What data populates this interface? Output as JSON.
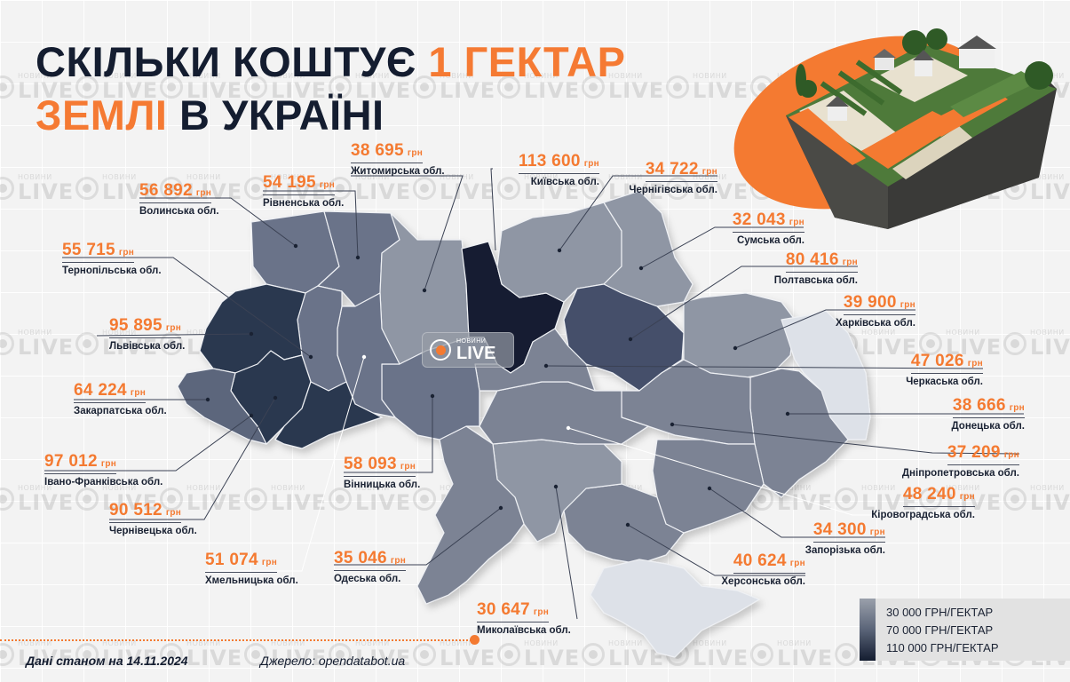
{
  "title": {
    "line1_dark": "СКІЛЬКИ КОШТУЄ ",
    "line1_accent": "1 ГЕКТАР",
    "line2_accent": "ЗЕМЛІ",
    "line2_dark": " В УКРАЇНІ"
  },
  "colors": {
    "accent": "#f47a31",
    "dark": "#141d30",
    "background": "#f3f3f3",
    "scale_low": "#9aa0ab",
    "scale_mid": "#5a6478",
    "scale_high": "#141d30",
    "occupied": "#dde1e8"
  },
  "watermark": {
    "small": "НОВИНИ",
    "big": "LIVE"
  },
  "center_logo": {
    "small": "НОВИНИ",
    "big": "LIVE"
  },
  "currency": "грн",
  "regions": [
    {
      "value": "56 892",
      "name": "Волинська обл."
    },
    {
      "value": "54 195",
      "name": "Рівненська обл."
    },
    {
      "value": "38 695",
      "name": "Житомирська обл."
    },
    {
      "value": "113 600",
      "name": "Київська обл."
    },
    {
      "value": "34 722",
      "name": "Чернігівська обл."
    },
    {
      "value": "32 043",
      "name": "Сумська обл."
    },
    {
      "value": "80 416",
      "name": "Полтавська обл."
    },
    {
      "value": "39 900",
      "name": "Харківська обл."
    },
    {
      "value": "47 026",
      "name": "Черкаська обл."
    },
    {
      "value": "38 666",
      "name": "Донецька обл."
    },
    {
      "value": "37 209",
      "name": "Дніпропетровська обл."
    },
    {
      "value": "48 240",
      "name": "Кіровоградська обл."
    },
    {
      "value": "34 300",
      "name": "Запорізька обл."
    },
    {
      "value": "40 624",
      "name": "Херсонська обл."
    },
    {
      "value": "30 647",
      "name": "Миколаївська обл."
    },
    {
      "value": "35 046",
      "name": "Одеська обл."
    },
    {
      "value": "58 093",
      "name": "Вінницька обл."
    },
    {
      "value": "51 074",
      "name": "Хмельницька обл."
    },
    {
      "value": "90 512",
      "name": "Чернівецька обл."
    },
    {
      "value": "97 012",
      "name": "Івано-Франківська обл."
    },
    {
      "value": "64 224",
      "name": "Закарпатська обл."
    },
    {
      "value": "95 895",
      "name": "Львівська обл."
    },
    {
      "value": "55 715",
      "name": "Тернопільська обл."
    }
  ],
  "legend": {
    "items": [
      "30 000 ГРН/ГЕКТАР",
      "70 000 ГРН/ГЕКТАР",
      "110 000 ГРН/ГЕКТАР"
    ]
  },
  "footer": {
    "date": "Дані станом на 14.11.2024",
    "source": "Джерело: opendatabot.ua"
  },
  "chart_data": {
    "type": "choropleth-map",
    "title": "Скільки коштує 1 гектар землі в Україні",
    "unit": "грн/гектар",
    "date": "14.11.2024",
    "source": "opendatabot.ua",
    "categories": [
      "Волинська",
      "Рівненська",
      "Житомирська",
      "Київська",
      "Чернігівська",
      "Сумська",
      "Полтавська",
      "Харківська",
      "Черкаська",
      "Донецька",
      "Дніпропетровська",
      "Кіровоградська",
      "Запорізька",
      "Херсонська",
      "Миколаївська",
      "Одеська",
      "Вінницька",
      "Хмельницька",
      "Чернівецька",
      "Івано-Франківська",
      "Закарпатська",
      "Львівська",
      "Тернопільська"
    ],
    "values": [
      56892,
      54195,
      38695,
      113600,
      34722,
      32043,
      80416,
      39900,
      47026,
      38666,
      37209,
      48240,
      34300,
      40624,
      30647,
      35046,
      58093,
      51074,
      90512,
      97012,
      64224,
      95895,
      55715
    ],
    "color_scale": {
      "min": 30000,
      "mid": 70000,
      "max": 110000,
      "labels": [
        "30 000 ГРН/ГЕКТАР",
        "70 000 ГРН/ГЕКТАР",
        "110 000 ГРН/ГЕКТАР"
      ]
    },
    "legend_position": "bottom-right"
  }
}
